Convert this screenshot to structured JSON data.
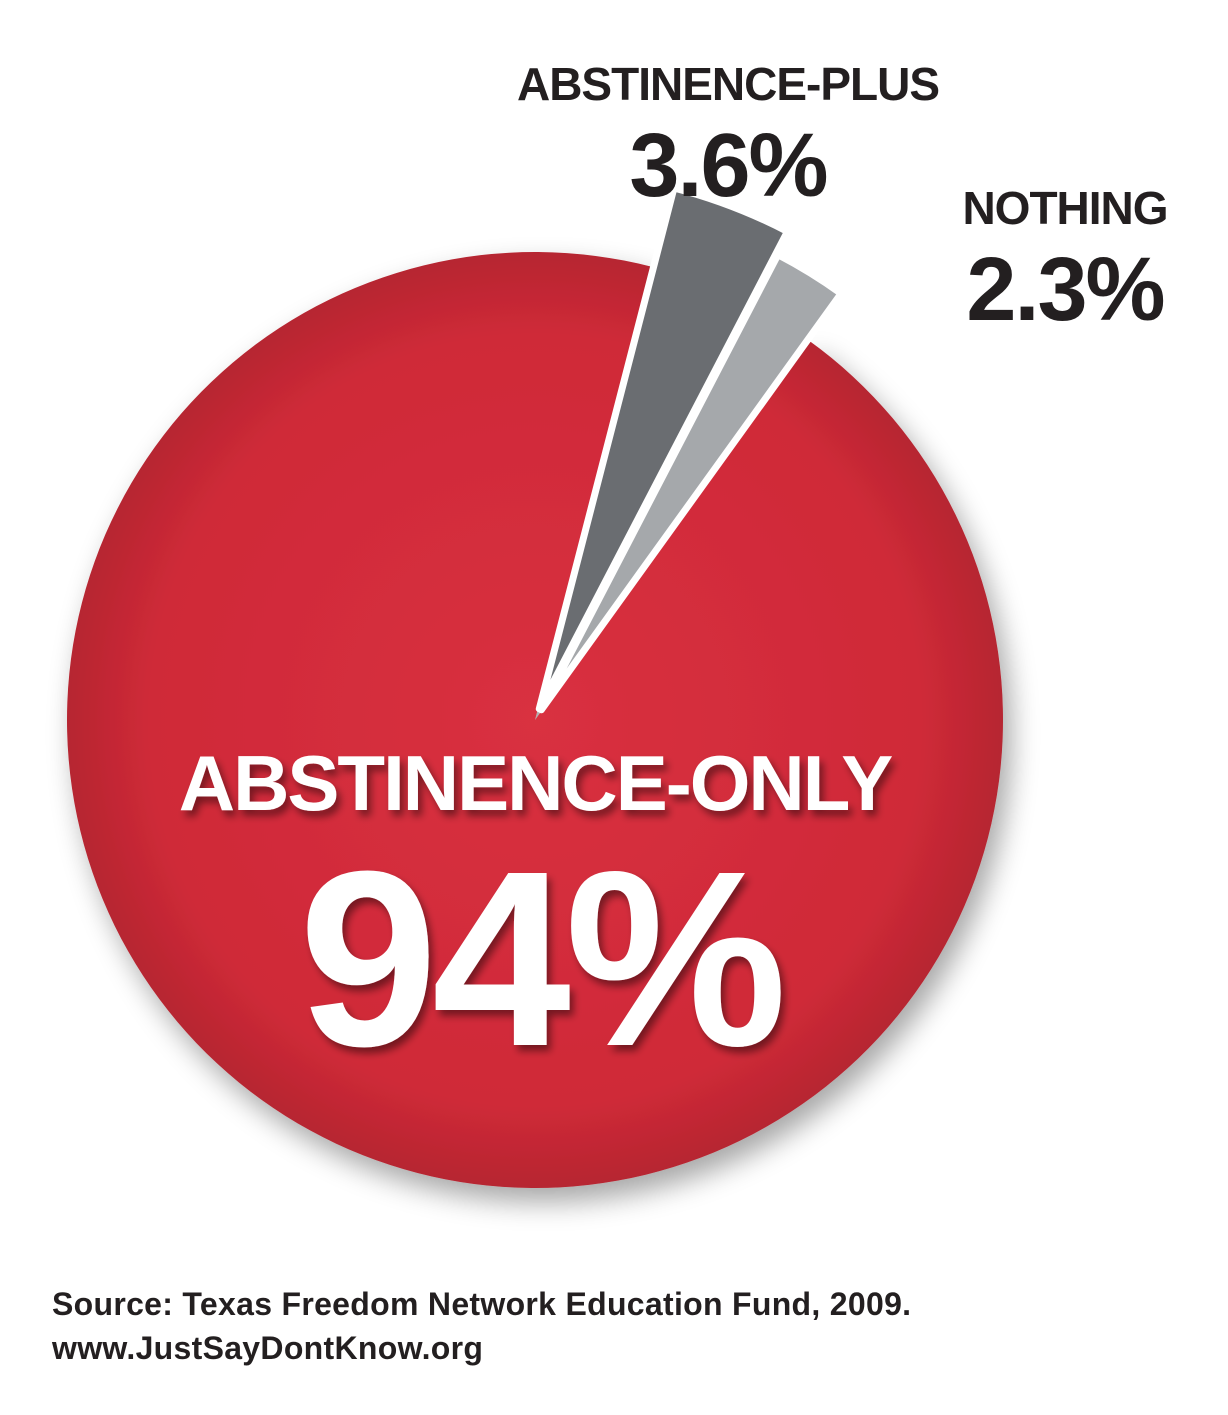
{
  "chart_data": {
    "type": "pie",
    "slices": [
      {
        "label": "ABSTINENCE-ONLY",
        "value": 94,
        "value_label": "94%",
        "color": "#d42a3a"
      },
      {
        "label": "ABSTINENCE-PLUS",
        "value": 3.6,
        "value_label": "3.6%",
        "color": "#6a6d71"
      },
      {
        "label": "NOTHING",
        "value": 2.3,
        "value_label": "2.3%",
        "color": "#a5a8ab"
      }
    ],
    "exploded": [
      "ABSTINENCE-PLUS",
      "NOTHING"
    ]
  },
  "footer": {
    "source": "Source: Texas Freedom Network Education Fund, 2009.",
    "url": "www.JustSayDontKnow.org"
  }
}
